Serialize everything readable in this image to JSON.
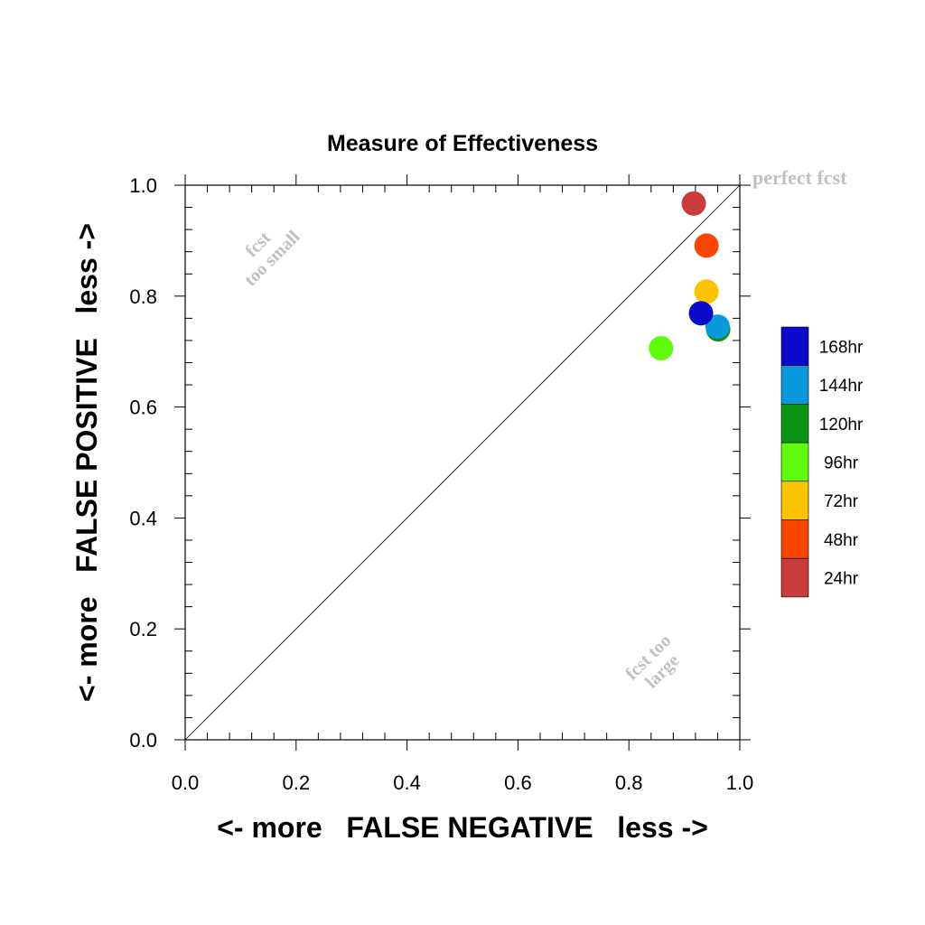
{
  "chart_data": {
    "type": "scatter",
    "title": "Measure of Effectiveness",
    "xlabel": "<- more   FALSE NEGATIVE   less ->",
    "ylabel": "<- more   FALSE POSITIVE   less ->",
    "xlim": [
      0.0,
      1.0
    ],
    "ylim": [
      0.0,
      1.0
    ],
    "x_ticks": [
      "0.0",
      "0.2",
      "0.4",
      "0.6",
      "0.8",
      "1.0"
    ],
    "y_ticks": [
      "0.0",
      "0.2",
      "0.4",
      "0.6",
      "0.8",
      "1.0"
    ],
    "reference_line": "diagonal",
    "annotations": {
      "perfect": "perfect fcst",
      "too_small_1": "fcst",
      "too_small_2": "too small",
      "too_large_1": "fcst too",
      "too_large_2": "large"
    },
    "series": [
      {
        "name": "120hr",
        "color": "#0a9414",
        "x": 0.961,
        "y": 0.74
      },
      {
        "name": "96hr",
        "color": "#5ffb0c",
        "x": 0.858,
        "y": 0.706
      },
      {
        "name": "24hr",
        "color": "#c83c3c",
        "x": 0.917,
        "y": 0.967
      },
      {
        "name": "48hr",
        "color": "#fa4600",
        "x": 0.94,
        "y": 0.891
      },
      {
        "name": "72hr",
        "color": "#fec300",
        "x": 0.94,
        "y": 0.808
      },
      {
        "name": "144hr",
        "color": "#0a99dc",
        "x": 0.96,
        "y": 0.745
      },
      {
        "name": "168hr",
        "color": "#0a0ac8",
        "x": 0.93,
        "y": 0.769
      }
    ],
    "legend": {
      "placement": "right",
      "entries": [
        {
          "label": "168hr",
          "color": "#0a0ac8"
        },
        {
          "label": "144hr",
          "color": "#0a99dc"
        },
        {
          "label": "120hr",
          "color": "#0a9414"
        },
        {
          "label": "96hr",
          "color": "#5ffb0c"
        },
        {
          "label": "72hr",
          "color": "#fec300"
        },
        {
          "label": "48hr",
          "color": "#fa4600"
        },
        {
          "label": "24hr",
          "color": "#c83c3c"
        }
      ]
    }
  }
}
